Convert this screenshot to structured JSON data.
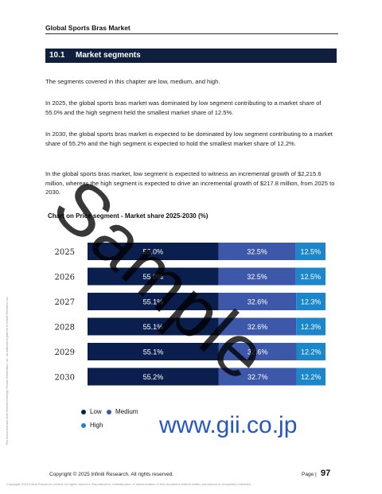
{
  "running_head": "Global Sports Bras Market",
  "section": {
    "number": "10.1",
    "title": "Market segments"
  },
  "paragraphs": [
    "The segments covered in this chapter are low, medium, and high.",
    "In 2025, the global sports bras market was dominated by low segment contributing to a market share of 55.0% and the high segment held the smallest market share of 12.5%.",
    "In 2030, the global sports bras market is expected to be dominated by low segment contributing to a market share of 55.2% and the high segment is expected to hold the smallest market share of 12.2%.",
    "In the global sports bras market, low segment is expected to witness an incremental growth of $2,215.6 million, whereas the high segment is expected to drive an incremental growth of $217.8 million, from 2025 to 2030."
  ],
  "chart_title": "Chart on Price segment - Market share 2025-2030 (%)",
  "chart_data": {
    "type": "bar",
    "orientation": "horizontal",
    "stacked": true,
    "percent": true,
    "categories": [
      "2025",
      "2026",
      "2027",
      "2028",
      "2029",
      "2030"
    ],
    "series": [
      {
        "name": "Low",
        "color": "#0a1f4e",
        "values": [
          55.0,
          55.0,
          55.1,
          55.1,
          55.1,
          55.2
        ]
      },
      {
        "name": "Medium",
        "color": "#3d58a8",
        "values": [
          32.5,
          32.5,
          32.6,
          32.6,
          32.6,
          32.7
        ]
      },
      {
        "name": "High",
        "color": "#1b86c9",
        "values": [
          12.5,
          12.5,
          12.3,
          12.3,
          12.2,
          12.2
        ]
      }
    ],
    "legend_position": "bottom-left",
    "grid": false
  },
  "watermark": "Sample",
  "url_mark": "www.gii.co.jp",
  "side_note": "This document has been licensed through Global Information, Inc. an authorized partner of Infiniti Research Inc.",
  "footer": {
    "copyright": "Copyright © 2025 Infiniti Research. All rights reserved.",
    "page_label": "Page |",
    "page_number": "97",
    "disclaimer": "Copyright 2025 Infiniti Research Limited. All rights reserved. Reproduction, redistribution, or dissemination of this document without written permission is completely forbidden."
  }
}
